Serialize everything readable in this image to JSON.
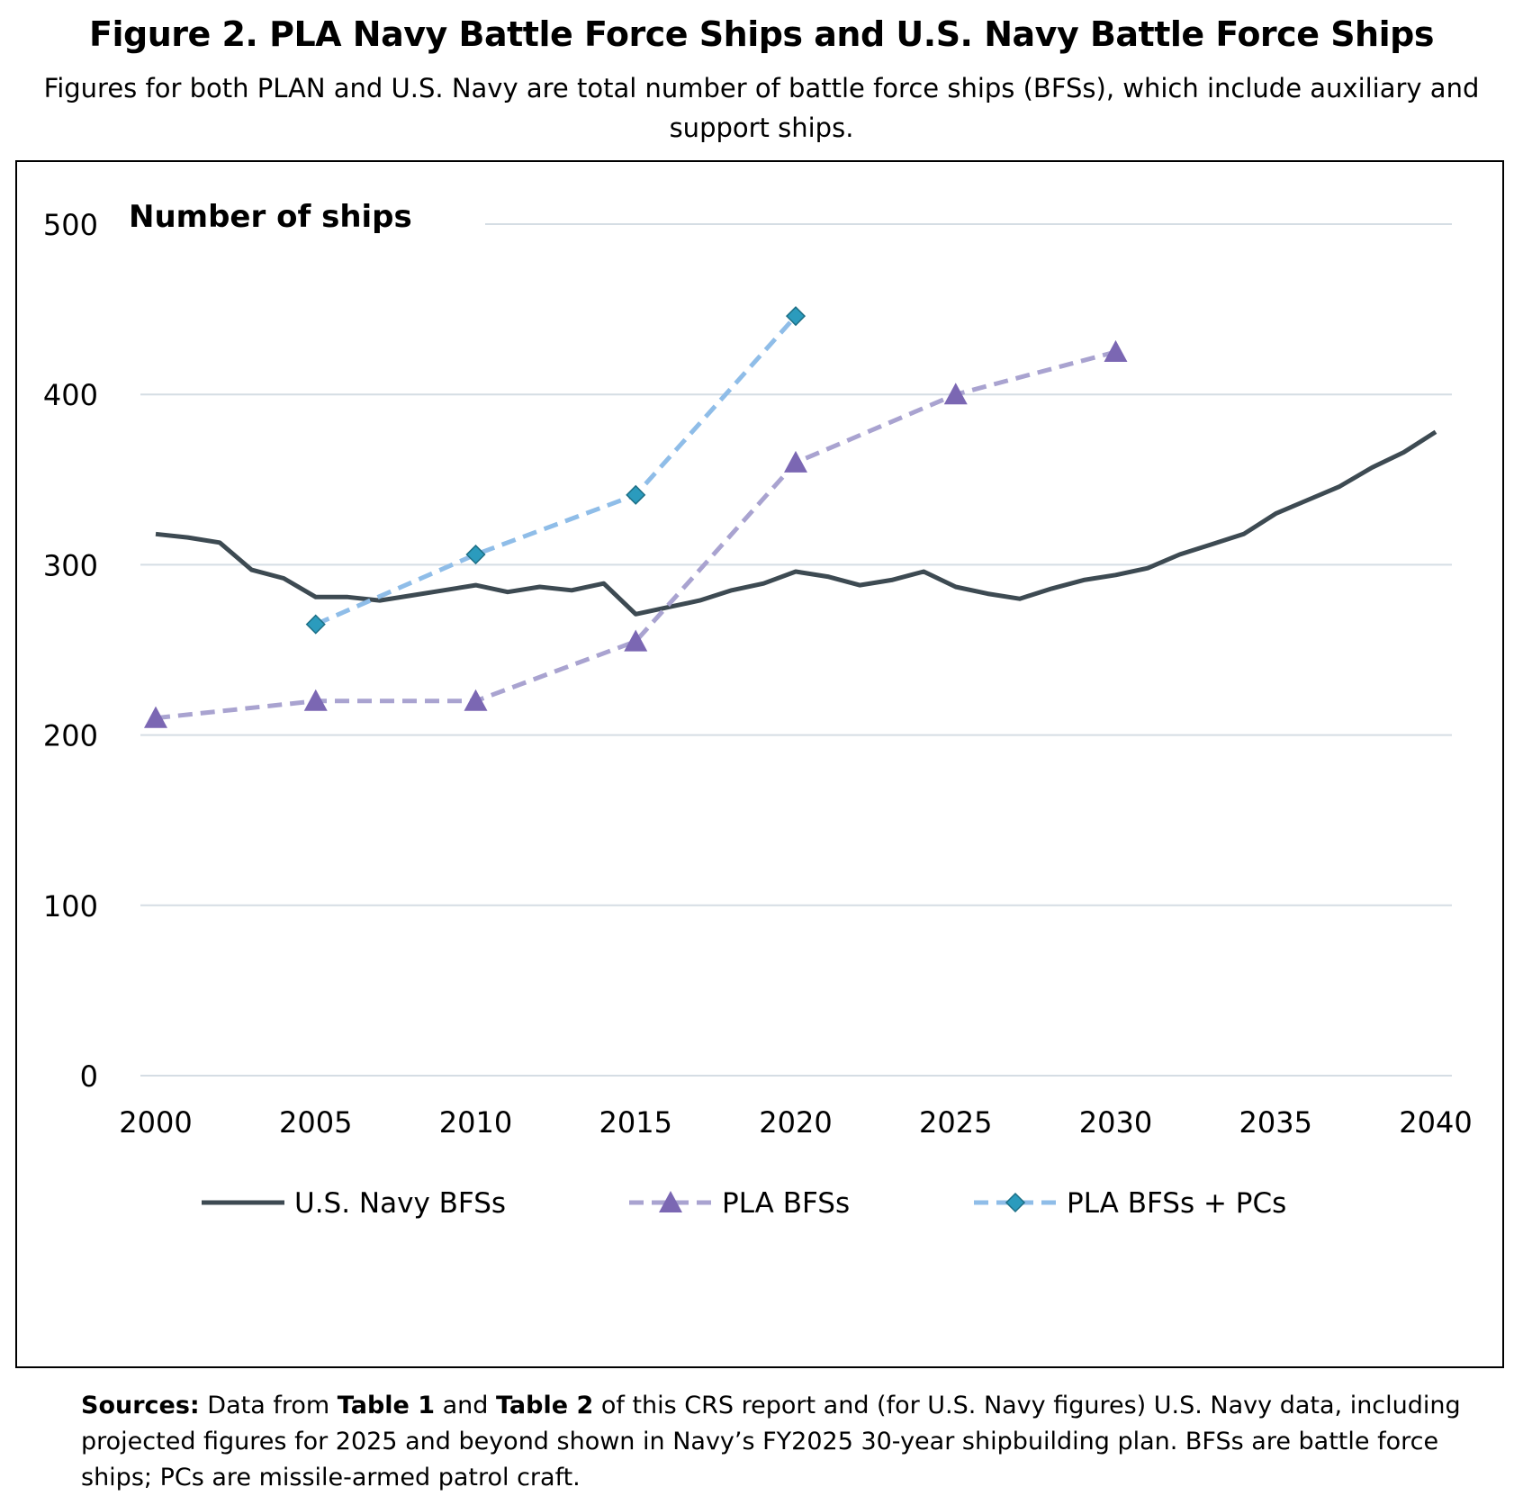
{
  "figure": {
    "title": "Figure 2. PLA Navy Battle Force Ships and U.S. Navy Battle Force Ships",
    "subtitle": "Figures for both PLAN and U.S. Navy are total number of battle force ships (BFSs), which include auxiliary and support ships."
  },
  "sources": {
    "label": "Sources:",
    "text_1": " Data from ",
    "table1": "Table 1",
    "text_2": " and ",
    "table2": "Table 2",
    "text_3": " of this CRS report and (for U.S. Navy figures) U.S. Navy data, including projected figures for 2025 and beyond shown in Navy’s FY2025 30-year shipbuilding plan. BFSs are battle force ships; PCs are missile-armed patrol craft."
  },
  "chart_data": {
    "type": "line",
    "title": "",
    "ylabel": "Number of ships",
    "xlabel": "",
    "xlim": [
      2000,
      2040
    ],
    "ylim": [
      0,
      500
    ],
    "x_ticks": [
      "2000",
      "2005",
      "2010",
      "2015",
      "2020",
      "2025",
      "2030",
      "2035",
      "2040"
    ],
    "y_ticks": [
      "0",
      "100",
      "200",
      "300",
      "400",
      "500"
    ],
    "grid": "horizontal",
    "legend_position": "bottom",
    "series": [
      {
        "name": "U.S. Navy BFSs",
        "color": "#3d4a52",
        "style": "solid",
        "marker": "none",
        "x": [
          2000,
          2001,
          2002,
          2003,
          2004,
          2005,
          2006,
          2007,
          2008,
          2009,
          2010,
          2011,
          2012,
          2013,
          2014,
          2015,
          2016,
          2017,
          2018,
          2019,
          2020,
          2021,
          2022,
          2023,
          2024,
          2025,
          2026,
          2027,
          2028,
          2029,
          2030,
          2031,
          2032,
          2033,
          2034,
          2035,
          2036,
          2037,
          2038,
          2039,
          2040
        ],
        "y": [
          318,
          316,
          313,
          297,
          292,
          281,
          281,
          279,
          282,
          285,
          288,
          284,
          287,
          285,
          289,
          271,
          275,
          279,
          285,
          289,
          296,
          293,
          288,
          291,
          296,
          287,
          283,
          280,
          286,
          291,
          294,
          298,
          306,
          312,
          318,
          330,
          338,
          346,
          357,
          366,
          378
        ]
      },
      {
        "name": "PLA BFSs",
        "color": "#a9a3d0",
        "marker_color": "#7b67b3",
        "style": "dashed",
        "marker": "triangle",
        "x": [
          2000,
          2005,
          2010,
          2015,
          2020,
          2025,
          2030
        ],
        "y": [
          210,
          220,
          220,
          255,
          360,
          400,
          425
        ]
      },
      {
        "name": "PLA BFSs + PCs",
        "color": "#8fbde8",
        "marker_color": "#2b9bbd",
        "style": "dashed",
        "marker": "diamond",
        "x": [
          2005,
          2010,
          2015,
          2020
        ],
        "y": [
          265,
          306,
          341,
          446
        ]
      }
    ]
  }
}
